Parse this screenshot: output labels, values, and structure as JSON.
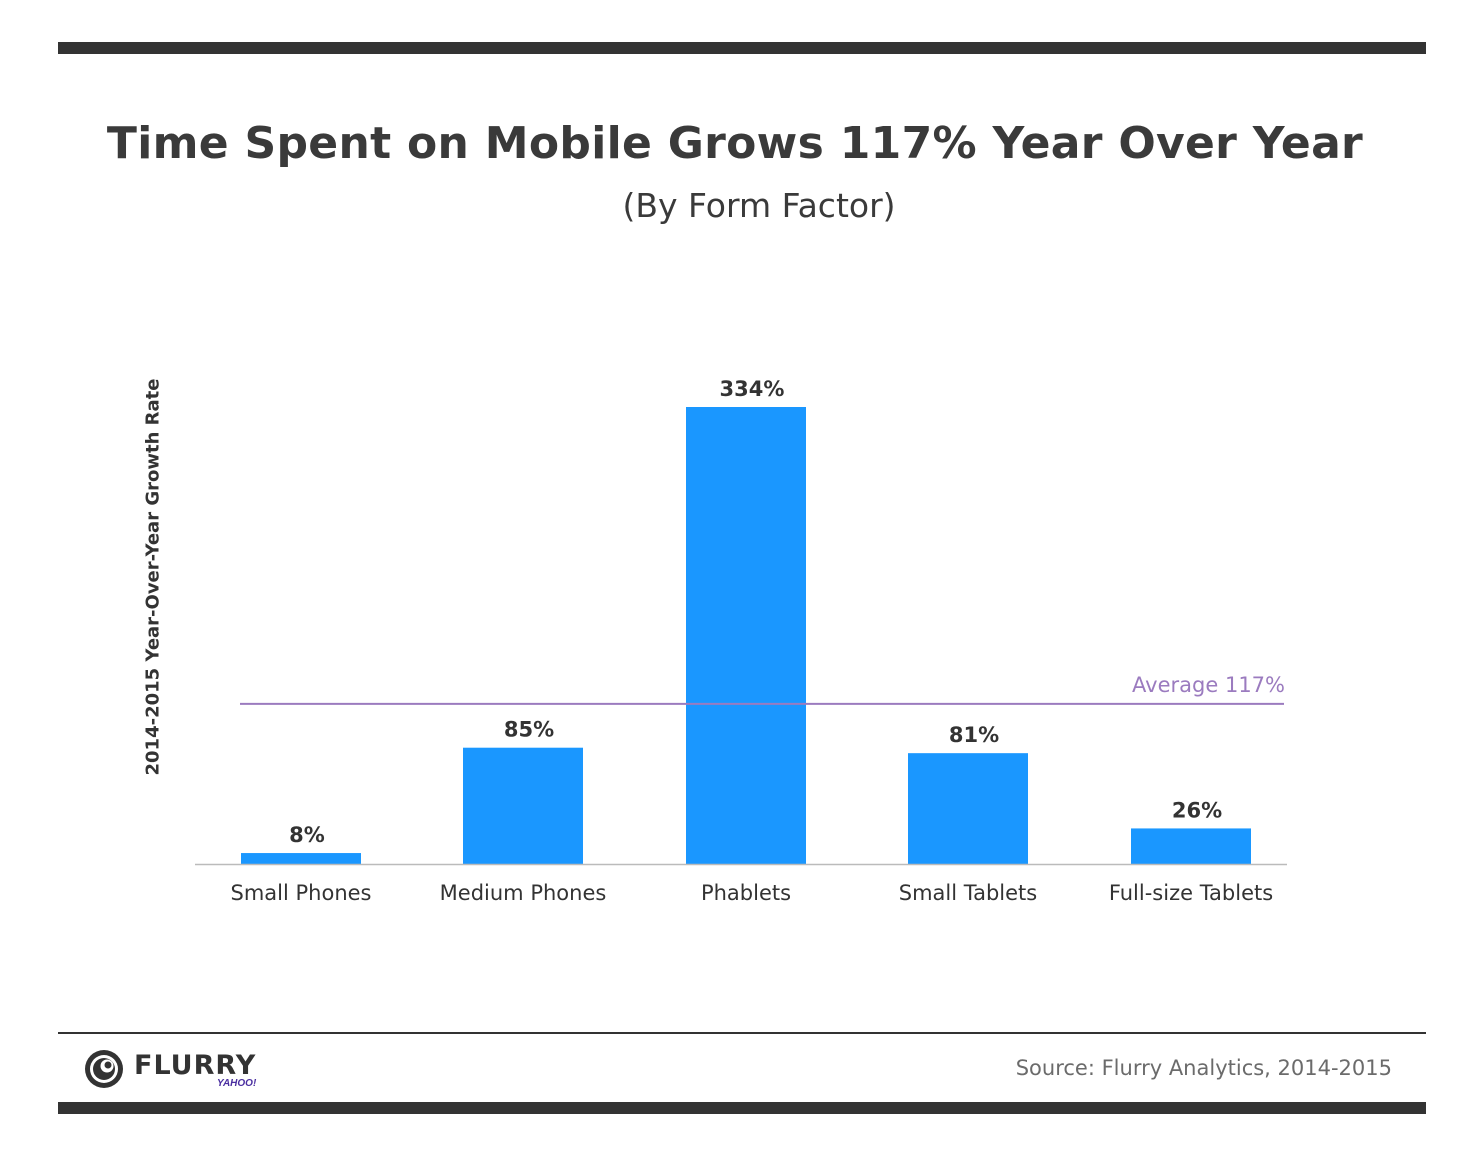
{
  "title": "Time Spent on Mobile Grows 117% Year Over Year",
  "subtitle": "(By Form Factor)",
  "footer": {
    "logo_text": "FLURRY",
    "logo_sub": "YAHOO!",
    "source": "Source: Flurry Analytics, 2014-2015"
  },
  "colors": {
    "bar": "#1a97ff",
    "average_line": "#9b7bbf",
    "average_label": "#9b7bbf",
    "text": "#333333"
  },
  "chart_data": {
    "type": "bar",
    "title": "Time Spent on Mobile Grows 117% Year Over Year",
    "subtitle": "(By Form Factor)",
    "xlabel": "",
    "ylabel": "2014-2015 Year-Over-Year Growth Rate",
    "categories": [
      "Small Phones",
      "Medium Phones",
      "Phablets",
      "Small Tablets",
      "Full-size Tablets"
    ],
    "values": [
      8,
      85,
      334,
      81,
      26
    ],
    "data_labels": [
      "8%",
      "85%",
      "334%",
      "81%",
      "26%"
    ],
    "ylim": [
      0,
      334
    ],
    "grid": false,
    "legend": "none",
    "reference_line": {
      "value": 117,
      "label": "Average 117%"
    }
  }
}
